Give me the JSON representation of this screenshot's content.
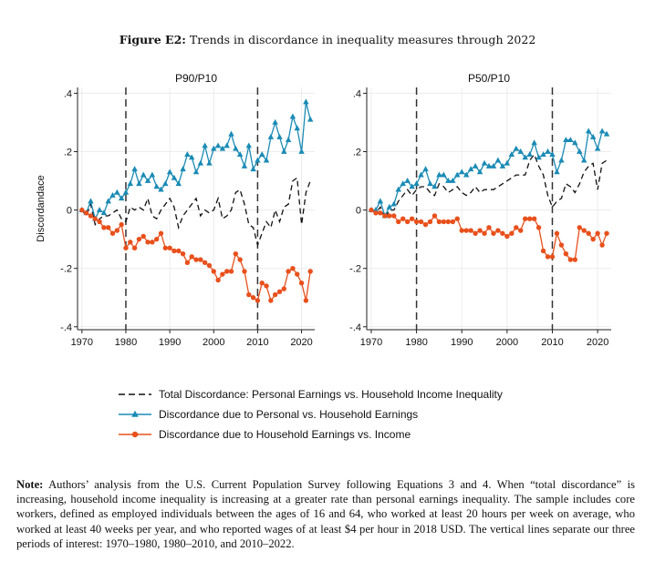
{
  "figure": {
    "label": "Figure E2:",
    "title": "Trends in discordance in inequality measures through 2022"
  },
  "note": {
    "label": "Note:",
    "text": "Authors’ analysis from the U.S. Current Population Survey following Equations 3 and 4. When “total discordance” is increasing, household income inequality is increasing at a greater rate than personal earnings inequality. The sample includes core workers, defined as employed individuals between the ages of 16 and 64, who worked at least 20 hours per week on average, who worked at least 40 weeks per year, and who reported wages of at least $4 per hour in 2018 USD. The vertical lines separate our three periods of interest: 1970–1980, 1980–2010, and 2010–2022."
  },
  "colors": {
    "total": "#111111",
    "personal": "#1a8bb5",
    "household": "#e8501c",
    "grid": "#ececec"
  },
  "legend": {
    "placement": "bottom",
    "items": [
      {
        "key": "total",
        "label": "Total Discordance: Personal Earnings vs. Household Income Inequality",
        "style": "dashed"
      },
      {
        "key": "personal",
        "label": "Discordance due to Personal vs. Household Earnings",
        "marker": "triangle"
      },
      {
        "key": "household",
        "label": "Discordance due to Household Earnings vs. Income",
        "marker": "circle"
      }
    ]
  },
  "chart_data": [
    {
      "type": "line",
      "title": "P90/P10",
      "ylabel": "Discordandace",
      "xlabel": "",
      "xlim": [
        1969,
        2023
      ],
      "ylim": [
        -0.41,
        0.42
      ],
      "xticks": [
        1970,
        1980,
        1990,
        2000,
        2010,
        2020
      ],
      "yticks": [
        {
          "v": 0.4,
          "label": ".4"
        },
        {
          "v": 0.2,
          "label": ".2"
        },
        {
          "v": 0,
          "label": "0"
        },
        {
          "v": -0.2,
          "label": "-.2"
        },
        {
          "v": -0.4,
          "label": "-.4"
        }
      ],
      "grid": true,
      "vlines": [
        1980,
        2010
      ],
      "x": [
        1970,
        1971,
        1972,
        1973,
        1974,
        1975,
        1976,
        1977,
        1978,
        1979,
        1980,
        1981,
        1982,
        1983,
        1984,
        1985,
        1986,
        1987,
        1988,
        1989,
        1990,
        1991,
        1992,
        1993,
        1994,
        1995,
        1996,
        1997,
        1998,
        1999,
        2000,
        2001,
        2002,
        2003,
        2004,
        2005,
        2006,
        2007,
        2008,
        2009,
        2010,
        2011,
        2012,
        2013,
        2014,
        2015,
        2016,
        2017,
        2018,
        2019,
        2020,
        2021,
        2022
      ],
      "series": [
        {
          "key": "total",
          "name": "Total Discordance: Personal Earnings vs. Household Income Inequality",
          "values": [
            0.0,
            -0.02,
            0.02,
            -0.05,
            -0.03,
            -0.02,
            -0.02,
            -0.01,
            0.0,
            -0.03,
            -0.04,
            0.01,
            -0.0,
            0.01,
            0.0,
            0.04,
            -0.02,
            -0.03,
            -0.0,
            0.02,
            0.04,
            0.01,
            -0.06,
            -0.02,
            0.0,
            0.02,
            0.04,
            -0.02,
            0.0,
            -0.01,
            0.0,
            0.04,
            -0.03,
            -0.02,
            0.0,
            0.06,
            0.07,
            0.02,
            -0.05,
            -0.06,
            -0.12,
            -0.08,
            -0.04,
            -0.06,
            0.0,
            -0.04,
            0.01,
            0.02,
            0.1,
            0.11,
            -0.05,
            0.06,
            0.1
          ]
        },
        {
          "key": "personal",
          "name": "Discordance due to Personal vs. Household Earnings",
          "values": [
            0.0,
            -0.01,
            0.03,
            -0.03,
            0.0,
            -0.01,
            0.03,
            0.05,
            0.06,
            0.04,
            0.06,
            0.09,
            0.14,
            0.09,
            0.12,
            0.1,
            0.12,
            0.08,
            0.07,
            0.09,
            0.13,
            0.11,
            0.09,
            0.14,
            0.19,
            0.18,
            0.13,
            0.16,
            0.22,
            0.16,
            0.21,
            0.22,
            0.21,
            0.22,
            0.26,
            0.21,
            0.19,
            0.15,
            0.22,
            0.14,
            0.17,
            0.19,
            0.17,
            0.25,
            0.3,
            0.25,
            0.2,
            0.24,
            0.32,
            0.28,
            0.2,
            0.37,
            0.31
          ]
        },
        {
          "key": "household",
          "name": "Discordance due to Household Earnings vs. Income",
          "values": [
            0.0,
            -0.01,
            -0.02,
            -0.03,
            -0.04,
            -0.06,
            -0.06,
            -0.08,
            -0.07,
            -0.05,
            -0.13,
            -0.11,
            -0.13,
            -0.1,
            -0.09,
            -0.11,
            -0.11,
            -0.1,
            -0.08,
            -0.13,
            -0.13,
            -0.14,
            -0.14,
            -0.15,
            -0.18,
            -0.16,
            -0.17,
            -0.17,
            -0.18,
            -0.19,
            -0.21,
            -0.24,
            -0.22,
            -0.21,
            -0.21,
            -0.15,
            -0.17,
            -0.21,
            -0.29,
            -0.3,
            -0.31,
            -0.25,
            -0.26,
            -0.31,
            -0.29,
            -0.28,
            -0.27,
            -0.21,
            -0.2,
            -0.22,
            -0.25,
            -0.31,
            -0.21
          ]
        }
      ]
    },
    {
      "type": "line",
      "title": "P50/P10",
      "ylabel": "",
      "xlabel": "",
      "xlim": [
        1969,
        2023
      ],
      "ylim": [
        -0.41,
        0.42
      ],
      "xticks": [
        1970,
        1980,
        1990,
        2000,
        2010,
        2020
      ],
      "yticks": [
        {
          "v": 0.4,
          "label": ".4"
        },
        {
          "v": 0.2,
          "label": ".2"
        },
        {
          "v": 0,
          "label": "0"
        },
        {
          "v": -0.2,
          "label": "-.2"
        },
        {
          "v": -0.4,
          "label": "-.4"
        }
      ],
      "grid": true,
      "vlines": [
        1980,
        2010
      ],
      "x": [
        1970,
        1971,
        1972,
        1973,
        1974,
        1975,
        1976,
        1977,
        1978,
        1979,
        1980,
        1981,
        1982,
        1983,
        1984,
        1985,
        1986,
        1987,
        1988,
        1989,
        1990,
        1991,
        1992,
        1993,
        1994,
        1995,
        1996,
        1997,
        1998,
        1999,
        2000,
        2001,
        2002,
        2003,
        2004,
        2005,
        2006,
        2007,
        2008,
        2009,
        2010,
        2011,
        2012,
        2013,
        2014,
        2015,
        2016,
        2017,
        2018,
        2019,
        2020,
        2021,
        2022
      ],
      "series": [
        {
          "key": "total",
          "name": "Total Discordance: Personal Earnings vs. Household Income Inequality",
          "values": [
            0.0,
            -0.01,
            0.01,
            -0.03,
            0.0,
            0.0,
            0.03,
            0.05,
            0.07,
            0.05,
            0.07,
            0.08,
            0.08,
            0.06,
            0.05,
            0.09,
            0.08,
            0.06,
            0.07,
            0.08,
            0.06,
            0.05,
            0.06,
            0.08,
            0.06,
            0.07,
            0.07,
            0.07,
            0.08,
            0.09,
            0.1,
            0.11,
            0.12,
            0.12,
            0.12,
            0.17,
            0.19,
            0.15,
            0.12,
            0.05,
            0.01,
            0.03,
            0.04,
            0.09,
            0.08,
            0.06,
            0.09,
            0.13,
            0.15,
            0.16,
            0.07,
            0.16,
            0.17
          ]
        },
        {
          "key": "personal",
          "name": "Discordance due to Personal vs. Household Earnings",
          "values": [
            0.0,
            0.0,
            0.03,
            -0.02,
            0.01,
            0.02,
            0.07,
            0.09,
            0.1,
            0.08,
            0.09,
            0.12,
            0.14,
            0.09,
            0.08,
            0.12,
            0.12,
            0.1,
            0.1,
            0.12,
            0.13,
            0.12,
            0.14,
            0.15,
            0.13,
            0.16,
            0.15,
            0.15,
            0.17,
            0.15,
            0.16,
            0.19,
            0.21,
            0.2,
            0.18,
            0.19,
            0.23,
            0.18,
            0.19,
            0.2,
            0.19,
            0.13,
            0.17,
            0.24,
            0.24,
            0.23,
            0.2,
            0.17,
            0.27,
            0.25,
            0.21,
            0.27,
            0.26
          ]
        },
        {
          "key": "household",
          "name": "Discordance due to Household Earnings vs. Income",
          "values": [
            0.0,
            -0.01,
            -0.01,
            -0.02,
            -0.02,
            -0.02,
            -0.04,
            -0.03,
            -0.04,
            -0.03,
            -0.04,
            -0.04,
            -0.05,
            -0.04,
            -0.02,
            -0.04,
            -0.04,
            -0.04,
            -0.04,
            -0.03,
            -0.07,
            -0.07,
            -0.07,
            -0.08,
            -0.07,
            -0.08,
            -0.06,
            -0.08,
            -0.07,
            -0.08,
            -0.09,
            -0.08,
            -0.06,
            -0.07,
            -0.03,
            -0.03,
            -0.03,
            -0.06,
            -0.14,
            -0.16,
            -0.16,
            -0.08,
            -0.12,
            -0.15,
            -0.17,
            -0.17,
            -0.06,
            -0.07,
            -0.08,
            -0.1,
            -0.08,
            -0.12,
            -0.08
          ]
        }
      ]
    }
  ]
}
